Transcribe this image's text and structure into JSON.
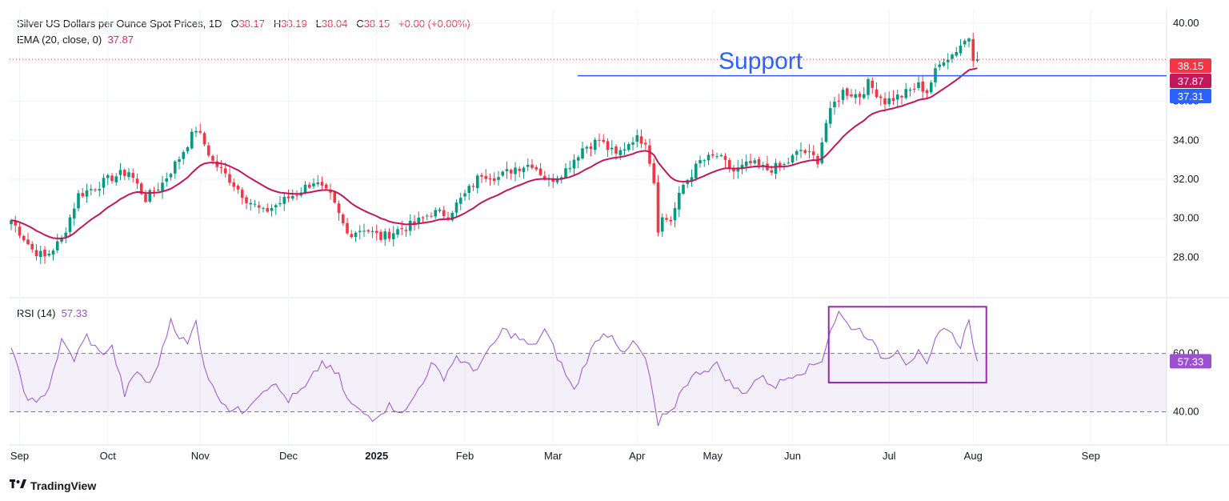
{
  "header": {
    "title": "Silver US Dollars per Ounce Spot Prices, 1D",
    "o_label": "O",
    "o_value": "38.17",
    "h_label": "H",
    "h_value": "38.19",
    "l_label": "L",
    "l_value": "38.04",
    "c_label": "C",
    "c_value": "38.15",
    "change": "+0.00 (+0.00%)",
    "ema_label": "EMA (20, close, 0)",
    "ema_value": "37.87",
    "rsi_label": "RSI (14)",
    "rsi_value": "57.33"
  },
  "brand": {
    "name": "TradingView"
  },
  "colors": {
    "up": "#089981",
    "down": "#f23645",
    "ema": "#c2185b",
    "support": "#2962ff",
    "rsi": "#9c4fd3",
    "box": "#9c27b0",
    "grid": "#f0f3fa"
  },
  "chart_data": [
    {
      "type": "candlestick",
      "title": "Silver US Dollars per Ounce Spot Prices, 1D",
      "ylim": [
        26.5,
        40.7
      ],
      "y_ticks": [
        "40.00",
        "38.00",
        "36.00",
        "34.00",
        "32.00",
        "30.00",
        "28.00"
      ],
      "x_ticks": [
        "Sep",
        "Oct",
        "Nov",
        "Dec",
        "2025",
        "Feb",
        "Mar",
        "Apr",
        "May",
        "Jun",
        "Jul",
        "Aug",
        "Sep"
      ],
      "close_anchors": [
        [
          0,
          29.9
        ],
        [
          5,
          28.4
        ],
        [
          8,
          28.0
        ],
        [
          12,
          28.9
        ],
        [
          16,
          31.2
        ],
        [
          20,
          31.6
        ],
        [
          24,
          32.1
        ],
        [
          28,
          32.4
        ],
        [
          32,
          31.0
        ],
        [
          36,
          31.8
        ],
        [
          40,
          33.1
        ],
        [
          44,
          34.6
        ],
        [
          46,
          33.8
        ],
        [
          48,
          32.9
        ],
        [
          52,
          32.0
        ],
        [
          56,
          31.0
        ],
        [
          60,
          30.3
        ],
        [
          64,
          30.8
        ],
        [
          68,
          31.3
        ],
        [
          72,
          31.9
        ],
        [
          76,
          31.1
        ],
        [
          80,
          29.2
        ],
        [
          84,
          29.5
        ],
        [
          88,
          29.0
        ],
        [
          92,
          29.4
        ],
        [
          96,
          29.7
        ],
        [
          100,
          30.3
        ],
        [
          104,
          30.2
        ],
        [
          108,
          31.2
        ],
        [
          112,
          32.3
        ],
        [
          116,
          32.1
        ],
        [
          120,
          32.6
        ],
        [
          124,
          32.8
        ],
        [
          128,
          31.9
        ],
        [
          132,
          32.5
        ],
        [
          136,
          33.6
        ],
        [
          140,
          34.0
        ],
        [
          144,
          33.2
        ],
        [
          148,
          34.1
        ],
        [
          151,
          34.0
        ],
        [
          153,
          31.9
        ],
        [
          154,
          29.5
        ],
        [
          155,
          30.0
        ],
        [
          157,
          29.9
        ],
        [
          160,
          31.7
        ],
        [
          164,
          32.9
        ],
        [
          168,
          33.2
        ],
        [
          172,
          32.4
        ],
        [
          176,
          32.8
        ],
        [
          180,
          32.5
        ],
        [
          184,
          32.7
        ],
        [
          188,
          33.5
        ],
        [
          192,
          33.0
        ],
        [
          194,
          34.9
        ],
        [
          196,
          35.9
        ],
        [
          198,
          36.5
        ],
        [
          202,
          36.3
        ],
        [
          204,
          36.9
        ],
        [
          208,
          36.0
        ],
        [
          212,
          36.3
        ],
        [
          216,
          36.8
        ],
        [
          218,
          36.5
        ],
        [
          220,
          37.5
        ],
        [
          222,
          38.2
        ],
        [
          224,
          38.4
        ],
        [
          226,
          38.9
        ],
        [
          228,
          39.3
        ],
        [
          229,
          38.3
        ],
        [
          230,
          38.15
        ]
      ],
      "ema_label": "EMA (20, close, 0)",
      "ema_last": 37.87,
      "last_close": 38.15,
      "support": {
        "label": "Support",
        "value": 37.31
      },
      "price_labels": [
        "38.15",
        "37.87",
        "37.31"
      ]
    },
    {
      "type": "line",
      "title": "RSI (14)",
      "ylim": [
        33,
        78
      ],
      "y_ticks": [
        "40.00",
        "60.00"
      ],
      "band": [
        40,
        60
      ],
      "anchors": [
        [
          0,
          62
        ],
        [
          3,
          47
        ],
        [
          6,
          42
        ],
        [
          9,
          49
        ],
        [
          12,
          64
        ],
        [
          15,
          58
        ],
        [
          18,
          66
        ],
        [
          21,
          60
        ],
        [
          24,
          62
        ],
        [
          27,
          46
        ],
        [
          30,
          54
        ],
        [
          33,
          49
        ],
        [
          36,
          61
        ],
        [
          38,
          72
        ],
        [
          40,
          66
        ],
        [
          42,
          63
        ],
        [
          44,
          71
        ],
        [
          46,
          56
        ],
        [
          48,
          48
        ],
        [
          52,
          41
        ],
        [
          55,
          40
        ],
        [
          58,
          45
        ],
        [
          62,
          50
        ],
        [
          66,
          44
        ],
        [
          70,
          48
        ],
        [
          74,
          57
        ],
        [
          78,
          52
        ],
        [
          80,
          44
        ],
        [
          83,
          40
        ],
        [
          86,
          38
        ],
        [
          90,
          42
        ],
        [
          94,
          40
        ],
        [
          97,
          48
        ],
        [
          100,
          56
        ],
        [
          103,
          52
        ],
        [
          106,
          59
        ],
        [
          110,
          54
        ],
        [
          114,
          61
        ],
        [
          117,
          68
        ],
        [
          120,
          66
        ],
        [
          124,
          62
        ],
        [
          127,
          68
        ],
        [
          131,
          56
        ],
        [
          134,
          47
        ],
        [
          137,
          58
        ],
        [
          140,
          66
        ],
        [
          143,
          67
        ],
        [
          146,
          59
        ],
        [
          148,
          64
        ],
        [
          151,
          58
        ],
        [
          153,
          44
        ],
        [
          154,
          35
        ],
        [
          155,
          38
        ],
        [
          157,
          39
        ],
        [
          160,
          49
        ],
        [
          164,
          54
        ],
        [
          168,
          56
        ],
        [
          171,
          50
        ],
        [
          174,
          46
        ],
        [
          178,
          52
        ],
        [
          182,
          49
        ],
        [
          186,
          53
        ],
        [
          190,
          55
        ],
        [
          193,
          58
        ],
        [
          195,
          68
        ],
        [
          197,
          74
        ],
        [
          199,
          70
        ],
        [
          202,
          68
        ],
        [
          204,
          66
        ],
        [
          206,
          61
        ],
        [
          208,
          58
        ],
        [
          211,
          62
        ],
        [
          213,
          57
        ],
        [
          216,
          60
        ],
        [
          218,
          55
        ],
        [
          220,
          64
        ],
        [
          222,
          70
        ],
        [
          224,
          66
        ],
        [
          226,
          63
        ],
        [
          228,
          71
        ],
        [
          229,
          64
        ],
        [
          230,
          57.33
        ]
      ],
      "last": 57.33,
      "highlight": {
        "from": 195,
        "to": 231,
        "low": 50,
        "high": 76
      }
    }
  ]
}
